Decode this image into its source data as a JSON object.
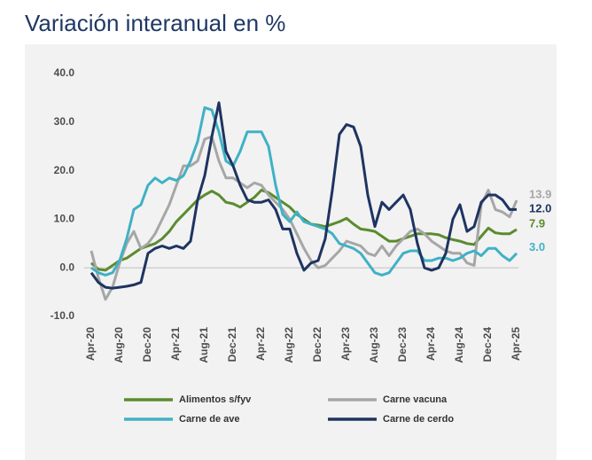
{
  "chart_data": {
    "type": "line",
    "title": "Variación interanual en %",
    "categories": [
      "Apr-20",
      null,
      null,
      null,
      "Aug-20",
      null,
      null,
      null,
      "Dec-20",
      null,
      null,
      null,
      "Apr-21",
      null,
      null,
      null,
      "Aug-21",
      null,
      null,
      null,
      "Dec-21",
      null,
      null,
      null,
      "Apr-22",
      null,
      null,
      null,
      "Aug-22",
      null,
      null,
      null,
      "Dec-22",
      null,
      null,
      null,
      "Apr-23",
      null,
      null,
      null,
      "Aug-23",
      null,
      null,
      null,
      "Dec-23",
      null,
      null,
      null,
      "Apr-24",
      null,
      null,
      null,
      "Aug-24",
      null,
      null,
      null,
      "Dec-24",
      null,
      null,
      null,
      "Apr-25"
    ],
    "ylim": [
      -10,
      40
    ],
    "yticks": [
      {
        "value": 40,
        "label": "40.0"
      },
      {
        "value": 30,
        "label": "30.0"
      },
      {
        "value": 20,
        "label": "20.0"
      },
      {
        "value": 10,
        "label": "10.0"
      },
      {
        "value": 0,
        "label": "0.0"
      },
      {
        "value": -10,
        "label": "-10.0"
      }
    ],
    "grid": false,
    "legend": "bottom",
    "series": [
      {
        "name": "Alimentos s/fyv",
        "color": "#5b8b2f",
        "values": [
          1.0,
          -0.3,
          -0.5,
          0.5,
          1.5,
          2.0,
          3.0,
          4.0,
          4.5,
          5.0,
          6.0,
          7.5,
          9.5,
          11.0,
          12.5,
          14.0,
          15.0,
          15.8,
          15.0,
          13.5,
          13.2,
          12.5,
          13.5,
          14.5,
          16.0,
          15.5,
          14.5,
          13.5,
          12.5,
          11.0,
          10.0,
          9.0,
          8.8,
          8.5,
          9.0,
          9.5,
          10.2,
          9.0,
          8.0,
          7.8,
          7.5,
          6.5,
          5.5,
          5.5,
          6.0,
          6.5,
          7.0,
          7.0,
          7.0,
          6.8,
          6.2,
          5.8,
          5.5,
          5.0,
          4.8,
          6.5,
          8.2,
          7.2,
          7.0,
          7.0,
          7.9
        ],
        "value_labels": [
          null,
          null,
          null,
          null,
          null,
          null,
          null,
          null,
          null,
          null,
          null,
          null,
          null,
          null,
          null,
          null,
          null,
          null,
          null,
          null,
          null,
          null,
          null,
          null,
          null,
          null,
          null,
          null,
          null,
          null,
          null,
          null,
          null,
          null,
          null,
          null,
          null,
          null,
          null,
          null,
          null,
          null,
          null,
          null,
          null,
          null,
          null,
          null,
          null,
          null,
          null,
          null,
          null,
          null,
          null,
          null,
          null,
          null,
          null,
          null,
          "7.9"
        ]
      },
      {
        "name": "Carne vacuna",
        "color": "#a6a6a6",
        "values": [
          3.5,
          -2.0,
          -6.5,
          -4.0,
          1.0,
          5.0,
          7.5,
          4.0,
          5.0,
          7.0,
          10.0,
          13.0,
          17.0,
          21.0,
          21.0,
          22.0,
          26.5,
          27.0,
          22.0,
          18.5,
          18.5,
          17.5,
          16.5,
          17.5,
          17.0,
          15.0,
          13.5,
          12.0,
          10.0,
          7.0,
          4.0,
          1.5,
          0.0,
          0.5,
          2.0,
          3.5,
          5.5,
          5.0,
          4.5,
          3.0,
          2.5,
          4.5,
          2.5,
          4.5,
          6.0,
          7.5,
          8.0,
          7.0,
          5.5,
          4.5,
          3.5,
          3.0,
          3.0,
          1.0,
          0.5,
          13.0,
          16.0,
          12.0,
          11.5,
          10.5,
          13.9
        ],
        "value_labels": [
          null,
          null,
          null,
          null,
          null,
          null,
          null,
          null,
          null,
          null,
          null,
          null,
          null,
          null,
          null,
          null,
          null,
          null,
          null,
          null,
          null,
          null,
          null,
          null,
          null,
          null,
          null,
          null,
          null,
          null,
          null,
          null,
          null,
          null,
          null,
          null,
          null,
          null,
          null,
          null,
          null,
          null,
          null,
          null,
          null,
          null,
          null,
          null,
          null,
          null,
          null,
          null,
          null,
          null,
          null,
          null,
          null,
          null,
          null,
          null,
          "13.9"
        ]
      },
      {
        "name": "Carne de ave",
        "color": "#40b1c5",
        "values": [
          0.0,
          -1.0,
          -1.5,
          -1.0,
          1.5,
          6.0,
          12.0,
          13.0,
          17.0,
          18.5,
          17.5,
          18.5,
          18.0,
          19.0,
          22.0,
          26.0,
          33.0,
          32.5,
          28.0,
          22.0,
          21.0,
          24.0,
          28.0,
          28.0,
          28.0,
          25.0,
          17.0,
          11.0,
          9.5,
          11.5,
          9.5,
          9.0,
          8.5,
          8.0,
          7.0,
          5.0,
          4.5,
          4.0,
          3.0,
          1.0,
          -1.0,
          -1.5,
          -1.0,
          1.0,
          3.0,
          3.5,
          3.5,
          1.5,
          1.5,
          2.0,
          2.0,
          1.5,
          2.0,
          3.0,
          3.5,
          2.5,
          4.0,
          4.0,
          2.5,
          1.5,
          3.0
        ],
        "value_labels": [
          null,
          null,
          null,
          null,
          null,
          null,
          null,
          null,
          null,
          null,
          null,
          null,
          null,
          null,
          null,
          null,
          null,
          null,
          null,
          null,
          null,
          null,
          null,
          null,
          null,
          null,
          null,
          null,
          null,
          null,
          null,
          null,
          null,
          null,
          null,
          null,
          null,
          null,
          null,
          null,
          null,
          null,
          null,
          null,
          null,
          null,
          null,
          null,
          null,
          null,
          null,
          null,
          null,
          null,
          null,
          null,
          null,
          null,
          null,
          null,
          "3.0"
        ]
      },
      {
        "name": "Carne de cerdo",
        "color": "#1e3461",
        "values": [
          -1.0,
          -3.0,
          -4.0,
          -4.2,
          -4.0,
          -3.8,
          -3.5,
          -3.0,
          3.0,
          4.0,
          4.5,
          4.0,
          4.5,
          4.0,
          5.5,
          14.0,
          19.0,
          27.0,
          34.0,
          24.0,
          21.0,
          17.0,
          14.0,
          13.5,
          13.5,
          14.0,
          12.0,
          8.0,
          8.0,
          3.0,
          -0.5,
          1.0,
          1.5,
          6.0,
          16.0,
          27.5,
          29.5,
          29.0,
          25.0,
          15.0,
          8.5,
          13.5,
          12.0,
          13.5,
          15.0,
          12.0,
          5.0,
          0.0,
          -0.5,
          0.0,
          3.0,
          10.0,
          13.0,
          7.5,
          8.5,
          13.5,
          15.0,
          15.0,
          14.0,
          12.0,
          12.0
        ],
        "value_labels": [
          null,
          null,
          null,
          null,
          null,
          null,
          null,
          null,
          null,
          null,
          null,
          null,
          null,
          null,
          null,
          null,
          null,
          null,
          null,
          null,
          null,
          null,
          null,
          null,
          null,
          null,
          null,
          null,
          null,
          null,
          null,
          null,
          null,
          null,
          null,
          null,
          null,
          null,
          null,
          null,
          null,
          null,
          null,
          null,
          null,
          null,
          null,
          null,
          null,
          null,
          null,
          null,
          null,
          null,
          null,
          null,
          null,
          null,
          null,
          null,
          "12.0"
        ]
      }
    ]
  }
}
